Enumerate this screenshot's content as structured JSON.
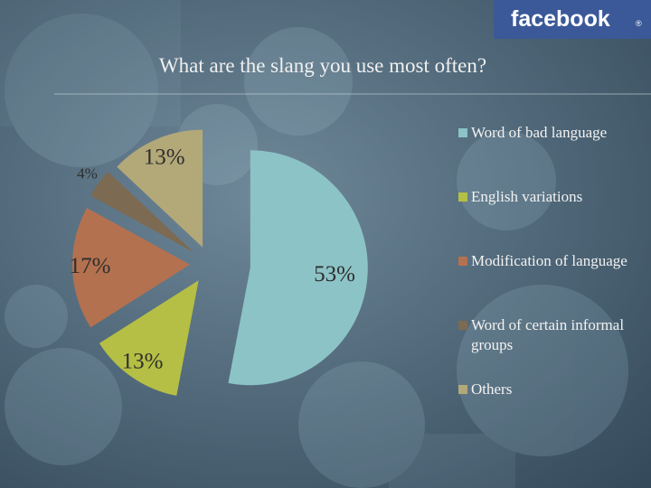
{
  "logo": "facebook",
  "logo_mark": "®",
  "chart_data": {
    "type": "pie",
    "title": "What are the slang you use most often?",
    "series": [
      {
        "name": "Word of bad language",
        "color": "#8cc3c6",
        "values": [
          53
        ],
        "value_labels": [
          "53%"
        ]
      },
      {
        "name": "English variations",
        "color": "#b5bf45",
        "values": [
          13
        ],
        "value_labels": [
          "13%"
        ]
      },
      {
        "name": "Modification of language",
        "color": "#b4714f",
        "values": [
          17
        ],
        "value_labels": [
          "17%"
        ]
      },
      {
        "name": "Word of certain informal groups",
        "color": "#7d6a52",
        "values": [
          4
        ],
        "value_labels": [
          "4%"
        ]
      },
      {
        "name": "Others",
        "color": "#b3a878",
        "values": [
          13
        ],
        "value_labels": [
          "13%"
        ]
      }
    ],
    "legend": "right"
  }
}
